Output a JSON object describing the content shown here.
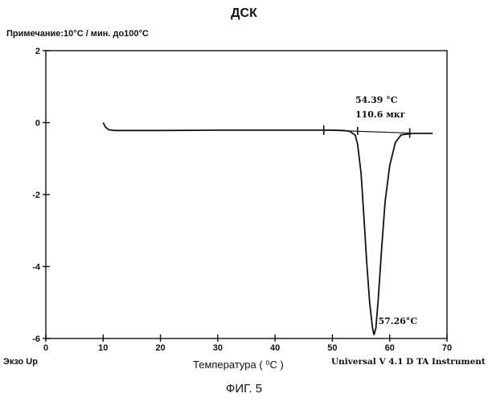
{
  "page": {
    "title": "ДСК",
    "note": "Примечание:10°С / мин. до100°С",
    "footer_left": "Экзо Up",
    "footer_right": "Universal V 4.1 D TA Instrument",
    "figure_label": "ФИГ. 5"
  },
  "chart_data": {
    "type": "line",
    "title": "ДСК",
    "xlabel": "Температура ( ⁰С )",
    "ylabel": "",
    "xlim": [
      0,
      70
    ],
    "ylim": [
      -6,
      2
    ],
    "x_ticks": [
      0,
      10,
      20,
      30,
      40,
      50,
      60,
      70
    ],
    "y_ticks": [
      2,
      0,
      -2,
      -4,
      -6
    ],
    "x_tick_labels": [
      "0",
      "10",
      "20",
      "30",
      "40",
      "50",
      "60",
      "70"
    ],
    "y_tick_labels": [
      "2",
      "0",
      "-2",
      "-4",
      "-6"
    ],
    "grid": false,
    "series": [
      {
        "x": [
          10,
          10.4,
          11,
          12,
          15,
          20,
          30,
          40,
          45,
          48,
          50,
          52,
          53,
          54,
          54.4,
          55,
          55.5,
          56,
          56.5,
          57,
          57.26,
          57.6,
          58,
          58.6,
          59.2,
          60,
          61,
          62,
          64,
          66,
          67.5
        ],
        "y": [
          0.0,
          -0.12,
          -0.2,
          -0.22,
          -0.22,
          -0.22,
          -0.21,
          -0.21,
          -0.21,
          -0.21,
          -0.21,
          -0.22,
          -0.24,
          -0.35,
          -0.6,
          -1.4,
          -2.6,
          -3.9,
          -5.0,
          -5.7,
          -5.9,
          -5.7,
          -4.9,
          -3.5,
          -2.2,
          -1.2,
          -0.55,
          -0.34,
          -0.3,
          -0.3,
          -0.3
        ]
      }
    ],
    "baseline": {
      "x": [
        48.5,
        63.5
      ],
      "y": [
        -0.21,
        -0.29
      ]
    },
    "onset_marker": {
      "x": 54.4
    },
    "boundary_markers": [
      48.5,
      63.5
    ],
    "annotations": [
      {
        "id": "onset_temp",
        "text": "54.39 °C",
        "x": 54.0,
        "y": 0.55
      },
      {
        "id": "enthalpy",
        "text": "110.6 мкг",
        "x": 54.0,
        "y": 0.15
      },
      {
        "id": "peak_temp",
        "text": "57.26°C",
        "x": 58.0,
        "y": -5.6
      }
    ]
  }
}
